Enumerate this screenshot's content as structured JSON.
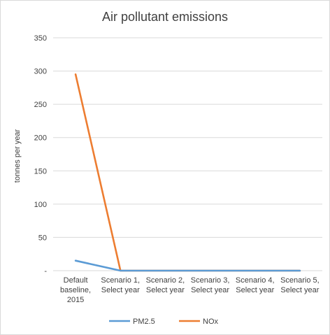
{
  "chart_data": {
    "type": "line",
    "title": "Air pollutant emissions",
    "xlabel": "",
    "ylabel": "tonnes per year",
    "ylim": [
      0,
      350
    ],
    "yticks": [
      "-",
      "50",
      "100",
      "150",
      "200",
      "250",
      "300",
      "350"
    ],
    "categories": [
      [
        "Default",
        "baseline,",
        "2015"
      ],
      [
        "Scenario 1,",
        "Select year"
      ],
      [
        "Scenario 2,",
        "Select year"
      ],
      [
        "Scenario 3,",
        "Select year"
      ],
      [
        "Scenario 4,",
        "Select year"
      ],
      [
        "Scenario 5,",
        "Select year"
      ]
    ],
    "series": [
      {
        "name": "PM2.5",
        "color": "#5b9bd5",
        "values": [
          15,
          0,
          0,
          0,
          0,
          0
        ]
      },
      {
        "name": "NOx",
        "color": "#ed7d31",
        "values": [
          295,
          0,
          0,
          0,
          0,
          0
        ]
      }
    ],
    "grid": true,
    "legend_position": "bottom"
  }
}
